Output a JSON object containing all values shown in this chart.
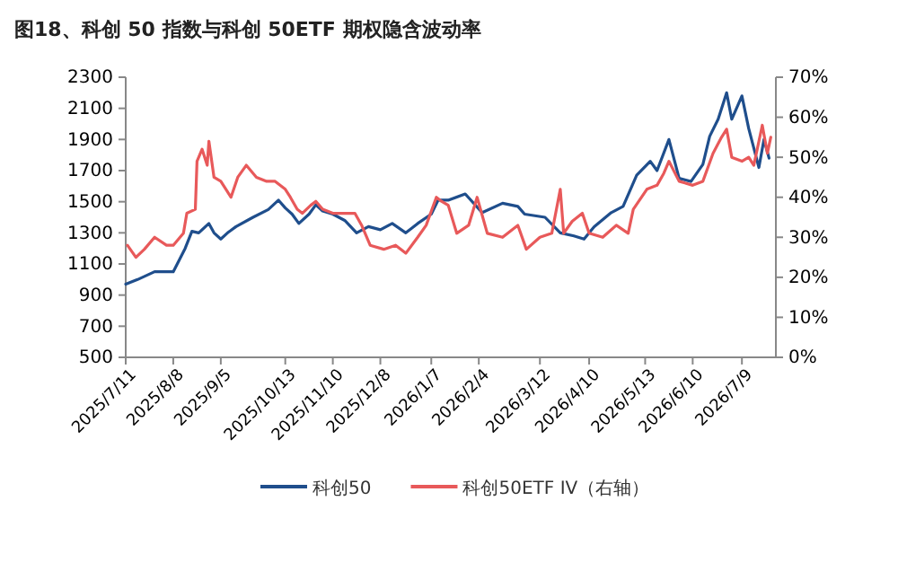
{
  "chart_data": {
    "type": "line",
    "title": "图18、科创 50 指数与科创 50ETF 期权隐含波动率",
    "xlim": [
      "2025-07-11",
      "2026-07-29"
    ],
    "xticks": [
      {
        "value": "2025-07-11",
        "label": "2025/7/11"
      },
      {
        "value": "2025-08-08",
        "label": "2025/8/8"
      },
      {
        "value": "2025-09-05",
        "label": "2025/9/5"
      },
      {
        "value": "2025-10-13",
        "label": "2025/10/13"
      },
      {
        "value": "2025-11-10",
        "label": "2025/11/10"
      },
      {
        "value": "2025-12-08",
        "label": "2025/12/8"
      },
      {
        "value": "2026-01-07",
        "label": "2026/1/7"
      },
      {
        "value": "2026-02-04",
        "label": "2026/2/4"
      },
      {
        "value": "2026-03-12",
        "label": "2026/3/12"
      },
      {
        "value": "2026-04-10",
        "label": "2026/4/10"
      },
      {
        "value": "2026-05-13",
        "label": "2026/5/13"
      },
      {
        "value": "2026-06-10",
        "label": "2026/6/10"
      },
      {
        "value": "2026-07-09",
        "label": "2026/7/9"
      }
    ],
    "ylim": [
      500,
      2300
    ],
    "yticks": [
      500,
      700,
      900,
      1100,
      1300,
      1500,
      1700,
      1900,
      2100,
      2300
    ],
    "y2lim": [
      0,
      70
    ],
    "y2ticks": [
      {
        "value": 0,
        "label": "0%"
      },
      {
        "value": 10,
        "label": "10%"
      },
      {
        "value": 20,
        "label": "20%"
      },
      {
        "value": 30,
        "label": "30%"
      },
      {
        "value": 40,
        "label": "40%"
      },
      {
        "value": 50,
        "label": "50%"
      },
      {
        "value": 60,
        "label": "60%"
      },
      {
        "value": 70,
        "label": "70%"
      }
    ],
    "legend": "bottom",
    "series": [
      {
        "name": "科创50",
        "color": "#1f4e8c",
        "x": [
          "2025-07-11",
          "2025-07-18",
          "2025-07-28",
          "2025-08-08",
          "2025-08-15",
          "2025-08-19",
          "2025-08-23",
          "2025-08-29",
          "2025-09-01",
          "2025-09-05",
          "2025-09-09",
          "2025-09-14",
          "2025-09-24",
          "2025-10-03",
          "2025-10-09",
          "2025-10-13",
          "2025-10-17",
          "2025-10-21",
          "2025-10-27",
          "2025-10-31",
          "2025-11-04",
          "2025-11-10",
          "2025-11-17",
          "2025-11-24",
          "2025-12-01",
          "2025-12-08",
          "2025-12-15",
          "2025-12-23",
          "2025-12-30",
          "2026-01-07",
          "2026-01-11",
          "2026-01-17",
          "2026-01-27",
          "2026-02-06",
          "2026-02-18",
          "2026-02-27",
          "2026-03-03",
          "2026-03-15",
          "2026-03-24",
          "2026-04-01",
          "2026-04-07",
          "2026-04-13",
          "2026-04-23",
          "2026-04-30",
          "2026-05-08",
          "2026-05-16",
          "2026-05-20",
          "2026-05-27",
          "2026-06-02",
          "2026-06-09",
          "2026-06-16",
          "2026-06-20",
          "2026-06-25",
          "2026-06-30",
          "2026-07-03",
          "2026-07-09",
          "2026-07-13",
          "2026-07-19",
          "2026-07-22",
          "2026-07-25"
        ],
        "values": [
          970,
          1000,
          1050,
          1050,
          1200,
          1310,
          1300,
          1360,
          1300,
          1260,
          1300,
          1340,
          1400,
          1450,
          1510,
          1460,
          1420,
          1360,
          1420,
          1480,
          1440,
          1420,
          1380,
          1300,
          1340,
          1320,
          1360,
          1300,
          1360,
          1420,
          1510,
          1510,
          1550,
          1430,
          1490,
          1470,
          1420,
          1400,
          1300,
          1280,
          1260,
          1340,
          1430,
          1470,
          1670,
          1760,
          1700,
          1900,
          1650,
          1630,
          1740,
          1920,
          2030,
          2200,
          2030,
          2180,
          1970,
          1720,
          1900,
          1780
        ]
      },
      {
        "name": "科创50ETF IV（右轴）",
        "color": "#e8595a",
        "axis": "y2",
        "x": [
          "2025-07-12",
          "2025-07-17",
          "2025-07-22",
          "2025-07-28",
          "2025-08-04",
          "2025-08-08",
          "2025-08-14",
          "2025-08-16",
          "2025-08-21",
          "2025-08-22",
          "2025-08-25",
          "2025-08-28",
          "2025-08-29",
          "2025-09-01",
          "2025-09-05",
          "2025-09-11",
          "2025-09-15",
          "2025-09-20",
          "2025-09-26",
          "2025-10-02",
          "2025-10-07",
          "2025-10-13",
          "2025-10-16",
          "2025-10-20",
          "2025-10-23",
          "2025-10-28",
          "2025-10-31",
          "2025-11-04",
          "2025-11-10",
          "2025-11-17",
          "2025-11-23",
          "2025-11-27",
          "2025-12-02",
          "2025-12-10",
          "2025-12-17",
          "2025-12-23",
          "2025-12-30",
          "2026-01-04",
          "2026-01-10",
          "2026-01-13",
          "2026-01-17",
          "2026-01-22",
          "2026-01-29",
          "2026-02-03",
          "2026-02-09",
          "2026-02-18",
          "2026-02-27",
          "2026-03-04",
          "2026-03-12",
          "2026-03-19",
          "2026-03-24",
          "2026-03-26",
          "2026-03-31",
          "2026-04-06",
          "2026-04-10",
          "2026-04-18",
          "2026-04-26",
          "2026-05-03",
          "2026-05-06",
          "2026-05-14",
          "2026-05-20",
          "2026-05-24",
          "2026-05-27",
          "2026-06-02",
          "2026-06-10",
          "2026-06-16",
          "2026-06-22",
          "2026-06-27",
          "2026-06-30",
          "2026-07-03",
          "2026-07-09",
          "2026-07-13",
          "2026-07-16",
          "2026-07-21",
          "2026-07-24",
          "2026-07-26"
        ],
        "values": [
          28,
          25,
          27,
          30,
          28,
          28,
          31,
          36,
          37,
          49,
          52,
          48,
          54,
          45,
          44,
          40,
          45,
          48,
          45,
          44,
          44,
          42,
          40,
          37,
          36,
          38,
          39,
          37,
          36,
          36,
          36,
          33,
          28,
          27,
          28,
          26,
          30,
          33,
          40,
          39,
          38,
          31,
          33,
          40,
          31,
          30,
          33,
          27,
          30,
          31,
          42,
          31,
          34,
          36,
          31,
          30,
          33,
          31,
          37,
          42,
          43,
          46,
          49,
          44,
          43,
          44,
          51,
          55,
          57,
          50,
          49,
          50,
          48,
          58,
          51,
          55
        ]
      }
    ]
  }
}
